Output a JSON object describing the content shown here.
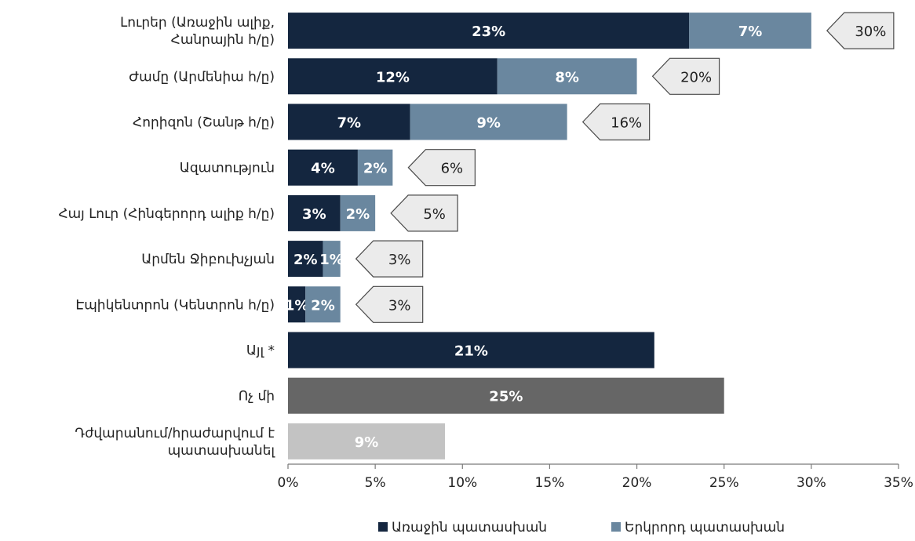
{
  "chart_data": {
    "type": "bar",
    "stacked": true,
    "orientation": "horizontal",
    "categories": [
      "Լուրեր (Առաջին ալիք, Հանրային հ/ը)",
      "Ժամը (Արմենիա հ/ը)",
      "Հորիզոն (Շանթ հ/ը)",
      "Ազատություն",
      "Հայ Լուր (Հինգերորդ ալիք հ/ը)",
      "Արմեն Ջիբուխչյան",
      "Էպիկենտրոն (Կենտրոն հ/ը)",
      "Այլ *",
      "Ոչ մի",
      "Դժվարանում/հրաժարվում է պատասխանել"
    ],
    "category_lines": [
      [
        "Լուրեր (Առաջին ալիք,",
        "Հանրային հ/ը)"
      ],
      [
        "Ժամը (Արմենիա հ/ը)"
      ],
      [
        "Հորիզոն (Շանթ հ/ը)"
      ],
      [
        "Ազատություն"
      ],
      [
        "Հայ Լուր (Հինգերորդ ալիք հ/ը)"
      ],
      [
        "Արմեն Ջիբուխչյան"
      ],
      [
        "Էպիկենտրոն (Կենտրոն հ/ը)"
      ],
      [
        "Այլ *"
      ],
      [
        "Ոչ մի"
      ],
      [
        "Դժվարանում/հրաժարվում է",
        "պատասխանել"
      ]
    ],
    "series": [
      {
        "name": "Առաջին պատասխան",
        "color": "#14263f",
        "values": [
          23,
          12,
          7,
          4,
          3,
          2,
          1,
          21,
          null,
          null
        ],
        "labels": [
          "23%",
          "12%",
          "7%",
          "4%",
          "3%",
          "2%",
          "1%",
          "21%",
          null,
          null
        ]
      },
      {
        "name": "Երկրորդ պատասխան",
        "color": "#6a879f",
        "values": [
          7,
          8,
          9,
          2,
          2,
          1,
          2,
          null,
          null,
          null
        ],
        "labels": [
          "7%",
          "8%",
          "9%",
          "2%",
          "2%",
          "1%",
          "2%",
          null,
          null,
          null
        ]
      },
      {
        "name": "",
        "color": "#666666",
        "in_legend": false,
        "values": [
          null,
          null,
          null,
          null,
          null,
          null,
          null,
          null,
          25,
          null
        ],
        "labels": [
          null,
          null,
          null,
          null,
          null,
          null,
          null,
          null,
          "25%",
          null
        ]
      },
      {
        "name": "",
        "color": "#c3c3c3",
        "in_legend": false,
        "values": [
          null,
          null,
          null,
          null,
          null,
          null,
          null,
          null,
          null,
          9
        ],
        "labels": [
          null,
          null,
          null,
          null,
          null,
          null,
          null,
          null,
          null,
          "9%"
        ]
      }
    ],
    "totals": [
      30,
      20,
      16,
      6,
      5,
      3,
      3,
      null,
      null,
      null
    ],
    "total_labels": [
      "30%",
      "20%",
      "16%",
      "6%",
      "5%",
      "3%",
      "3%",
      null,
      null,
      null
    ],
    "total_callout_color": "#ebebeb",
    "xlim": [
      0,
      35
    ],
    "xticks": [
      0,
      5,
      10,
      15,
      20,
      25,
      30,
      35
    ],
    "xtick_labels": [
      "0%",
      "5%",
      "10%",
      "15%",
      "20%",
      "25%",
      "30%",
      "35%"
    ],
    "xlabel": "",
    "ylabel": "",
    "title": "",
    "grid": false,
    "legend_position": "bottom-center"
  }
}
